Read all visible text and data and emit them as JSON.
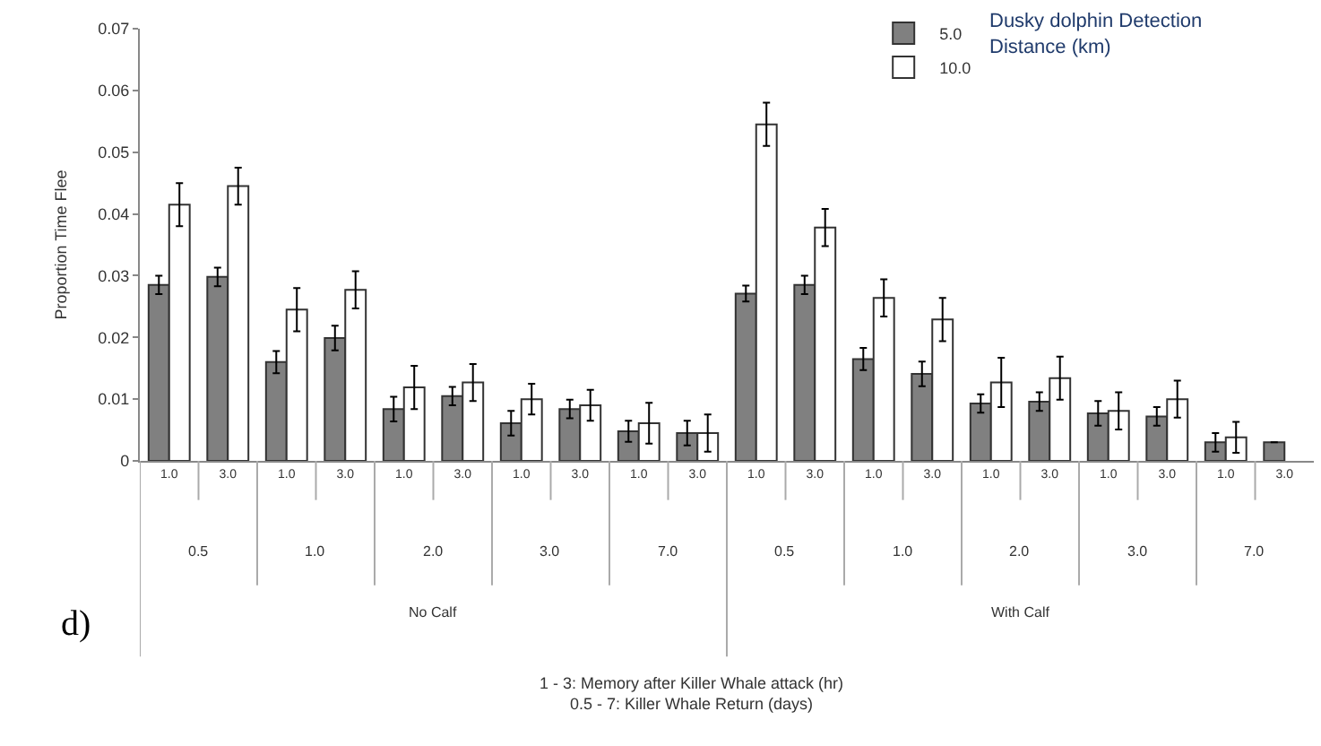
{
  "chart_data": {
    "type": "bar",
    "ylabel": "Proportion Time Flee",
    "legend_title": "Dusky dolphin Detection\nDistance (km)",
    "categories": [
      "1.0",
      "3.0",
      "1.0",
      "3.0",
      "1.0",
      "3.0",
      "1.0",
      "3.0",
      "1.0",
      "3.0",
      "1.0",
      "3.0",
      "1.0",
      "3.0",
      "1.0",
      "3.0",
      "1.0",
      "3.0",
      "1.0",
      "3.0"
    ],
    "series": [
      {
        "name": "5.0",
        "color": "#808080",
        "values": [
          0.0285,
          0.0298,
          0.016,
          0.0199,
          0.0084,
          0.0105,
          0.0061,
          0.0084,
          0.0048,
          0.0045,
          0.0271,
          0.0285,
          0.0165,
          0.0141,
          0.0093,
          0.0096,
          0.0077,
          0.0072,
          0.003,
          0.003
        ],
        "errors": [
          0.0015,
          0.0015,
          0.0018,
          0.002,
          0.002,
          0.0015,
          0.002,
          0.0015,
          0.0017,
          0.002,
          0.0013,
          0.0015,
          0.0018,
          0.002,
          0.0015,
          0.0015,
          0.002,
          0.0015,
          0.0015,
          null
        ]
      },
      {
        "name": "10.0",
        "color": "#ffffff",
        "values": [
          0.0415,
          0.0445,
          0.0245,
          0.0277,
          0.0119,
          0.0127,
          0.01,
          0.009,
          0.0061,
          0.0045,
          0.0545,
          0.0378,
          0.0264,
          0.0229,
          0.0127,
          0.0134,
          0.0081,
          0.01,
          0.0038,
          null
        ],
        "errors": [
          0.0035,
          0.003,
          0.0035,
          0.003,
          0.0035,
          0.003,
          0.0025,
          0.0025,
          0.0033,
          0.003,
          0.0035,
          0.003,
          0.003,
          0.0035,
          0.004,
          0.0035,
          0.003,
          0.003,
          0.0025,
          null
        ]
      }
    ],
    "ylim": [
      0,
      0.07
    ],
    "yticks": [
      0,
      0.01,
      0.02,
      0.03,
      0.04,
      0.05,
      0.06,
      0.07
    ],
    "annotations": [
      "0.5",
      "1.0",
      "2.0",
      "3.0",
      "7.0",
      "0.5",
      "1.0",
      "2.0",
      "3.0",
      "7.0",
      "No Calf",
      "With Calf",
      "d)",
      "1 - 3: Memory after Killer Whale attack (hr)\n0.5 - 7: Killer Whale Return (days)"
    ],
    "legend": "top right"
  }
}
